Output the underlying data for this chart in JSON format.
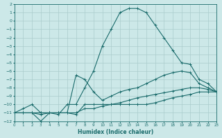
{
  "xlabel": "Humidex (Indice chaleur)",
  "xlim": [
    0,
    23
  ],
  "ylim": [
    -12,
    2
  ],
  "background_color": "#cce8e8",
  "grid_color": "#aacccc",
  "line_color": "#1a6b6b",
  "line1_x": [
    0,
    1,
    2,
    3,
    4,
    5,
    6,
    7,
    8,
    9,
    10,
    11,
    12,
    13,
    14,
    15,
    16,
    17,
    18,
    19,
    20,
    21,
    22,
    23
  ],
  "line1_y": [
    -11.0,
    -10.5,
    -10.0,
    -11.0,
    -11.0,
    -11.2,
    -10.0,
    -10.0,
    -8.0,
    -6.0,
    -3.0,
    -1.0,
    1.0,
    1.5,
    1.5,
    1.0,
    -0.5,
    -2.0,
    -3.5,
    -5.0,
    -5.2,
    -7.0,
    -7.5,
    -8.5
  ],
  "line2_x": [
    0,
    1,
    2,
    3,
    4,
    5,
    6,
    7,
    8,
    9,
    10,
    11,
    12,
    13,
    14,
    15,
    16,
    17,
    18,
    19,
    20,
    21,
    22,
    23
  ],
  "line2_y": [
    -11.0,
    -11.0,
    -11.0,
    -11.0,
    -11.0,
    -11.0,
    -11.0,
    -6.5,
    -7.0,
    -8.5,
    -9.5,
    -9.0,
    -8.5,
    -8.2,
    -8.0,
    -7.5,
    -7.0,
    -6.5,
    -6.2,
    -6.0,
    -6.2,
    -7.5,
    -8.0,
    -8.5
  ],
  "line3_x": [
    0,
    1,
    2,
    3,
    4,
    5,
    6,
    7,
    8,
    9,
    10,
    11,
    12,
    13,
    14,
    15,
    16,
    17,
    18,
    19,
    20,
    21,
    22,
    23
  ],
  "line3_y": [
    -11.0,
    -11.0,
    -11.0,
    -11.2,
    -11.0,
    -11.0,
    -11.0,
    -11.0,
    -10.5,
    -10.5,
    -10.2,
    -10.0,
    -9.8,
    -9.5,
    -9.2,
    -9.0,
    -8.8,
    -8.6,
    -8.4,
    -8.2,
    -8.0,
    -8.0,
    -8.2,
    -8.5
  ],
  "line4_x": [
    0,
    1,
    2,
    3,
    4,
    5,
    6,
    7,
    8,
    9,
    10,
    11,
    12,
    13,
    14,
    15,
    16,
    17,
    18,
    19,
    20,
    21,
    22,
    23
  ],
  "line4_y": [
    -11.0,
    -11.0,
    -11.0,
    -12.0,
    -11.0,
    -11.0,
    -11.0,
    -11.2,
    -10.0,
    -10.0,
    -10.0,
    -10.0,
    -10.0,
    -10.0,
    -10.0,
    -10.0,
    -9.8,
    -9.5,
    -9.2,
    -9.0,
    -8.8,
    -8.5,
    -8.5,
    -8.5
  ],
  "xticks": [
    0,
    1,
    2,
    3,
    4,
    5,
    6,
    7,
    8,
    9,
    10,
    11,
    12,
    13,
    14,
    15,
    16,
    17,
    18,
    19,
    20,
    21,
    22,
    23
  ],
  "yticks": [
    2,
    1,
    0,
    -1,
    -2,
    -3,
    -4,
    -5,
    -6,
    -7,
    -8,
    -9,
    -10,
    -11,
    -12
  ]
}
